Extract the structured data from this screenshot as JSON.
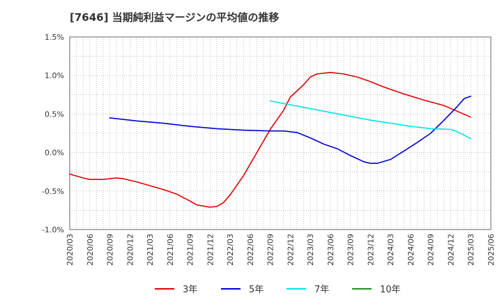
{
  "chart_data": {
    "type": "line",
    "title": "[7646]  当期純利益マージンの平均値の推移",
    "xlabel": "",
    "ylabel": "",
    "x": [
      "2020/03",
      "2020/06",
      "2020/09",
      "2020/12",
      "2021/03",
      "2021/06",
      "2021/09",
      "2021/12",
      "2022/03",
      "2022/06",
      "2022/09",
      "2022/12",
      "2023/03",
      "2023/06",
      "2023/09",
      "2023/12",
      "2024/03",
      "2024/06",
      "2024/09",
      "2024/12",
      "2025/03",
      "2025/06"
    ],
    "x_tick_labels": [
      "2020/03",
      "2020/06",
      "2020/09",
      "2020/12",
      "2021/03",
      "2021/06",
      "2021/09",
      "2021/12",
      "2022/03",
      "2022/06",
      "2022/09",
      "2022/12",
      "2023/03",
      "2023/06",
      "2023/09",
      "2023/12",
      "2024/03",
      "2024/06",
      "2024/09",
      "2024/12",
      "2025/03",
      "2025/06"
    ],
    "y_ticks": [
      -1.0,
      -0.5,
      0.0,
      0.5,
      1.0,
      1.5
    ],
    "y_tick_labels": [
      "-1.0%",
      "-0.5%",
      "0.0%",
      "0.5%",
      "1.0%",
      "1.5%"
    ],
    "ylim": [
      -1.0,
      1.5
    ],
    "grid": true,
    "legend_position": "bottom",
    "series": [
      {
        "name": "3年",
        "color": "#dd0000",
        "points": [
          [
            "2020/03",
            -0.28
          ],
          [
            "2020/05",
            -0.33
          ],
          [
            "2020/06",
            -0.35
          ],
          [
            "2020/08",
            -0.35
          ],
          [
            "2020/10",
            -0.33
          ],
          [
            "2020/11",
            -0.34
          ],
          [
            "2021/01",
            -0.38
          ],
          [
            "2021/03",
            -0.43
          ],
          [
            "2021/05",
            -0.48
          ],
          [
            "2021/07",
            -0.54
          ],
          [
            "2021/09",
            -0.63
          ],
          [
            "2021/10",
            -0.68
          ],
          [
            "2021/12",
            -0.71
          ],
          [
            "2022/01",
            -0.7
          ],
          [
            "2022/02",
            -0.65
          ],
          [
            "2022/03",
            -0.55
          ],
          [
            "2022/05",
            -0.3
          ],
          [
            "2022/07",
            0.0
          ],
          [
            "2022/09",
            0.3
          ],
          [
            "2022/11",
            0.55
          ],
          [
            "2022/12",
            0.72
          ],
          [
            "2023/02",
            0.88
          ],
          [
            "2023/03",
            0.98
          ],
          [
            "2023/04",
            1.02
          ],
          [
            "2023/06",
            1.04
          ],
          [
            "2023/08",
            1.02
          ],
          [
            "2023/10",
            0.98
          ],
          [
            "2023/12",
            0.92
          ],
          [
            "2024/02",
            0.85
          ],
          [
            "2024/05",
            0.76
          ],
          [
            "2024/08",
            0.68
          ],
          [
            "2024/11",
            0.61
          ],
          [
            "2025/03",
            0.46
          ]
        ]
      },
      {
        "name": "5年",
        "color": "#0000cc",
        "points": [
          [
            "2020/09",
            0.45
          ],
          [
            "2021/01",
            0.41
          ],
          [
            "2021/05",
            0.38
          ],
          [
            "2021/09",
            0.34
          ],
          [
            "2022/01",
            0.31
          ],
          [
            "2022/05",
            0.29
          ],
          [
            "2022/09",
            0.28
          ],
          [
            "2022/11",
            0.28
          ],
          [
            "2023/01",
            0.26
          ],
          [
            "2023/03",
            0.19
          ],
          [
            "2023/05",
            0.11
          ],
          [
            "2023/07",
            0.05
          ],
          [
            "2023/09",
            -0.04
          ],
          [
            "2023/11",
            -0.12
          ],
          [
            "2023/12",
            -0.14
          ],
          [
            "2024/01",
            -0.14
          ],
          [
            "2024/03",
            -0.09
          ],
          [
            "2024/05",
            0.02
          ],
          [
            "2024/07",
            0.13
          ],
          [
            "2024/09",
            0.25
          ],
          [
            "2024/11",
            0.42
          ],
          [
            "2025/01",
            0.6
          ],
          [
            "2025/02",
            0.7
          ],
          [
            "2025/03",
            0.73
          ]
        ]
      },
      {
        "name": "7年",
        "color": "#00e5e5",
        "points": [
          [
            "2022/09",
            0.67
          ],
          [
            "2022/12",
            0.62
          ],
          [
            "2023/03",
            0.57
          ],
          [
            "2023/06",
            0.52
          ],
          [
            "2023/09",
            0.47
          ],
          [
            "2023/12",
            0.42
          ],
          [
            "2024/03",
            0.38
          ],
          [
            "2024/06",
            0.34
          ],
          [
            "2024/09",
            0.31
          ],
          [
            "2024/12",
            0.3
          ],
          [
            "2025/01",
            0.27
          ],
          [
            "2025/03",
            0.18
          ]
        ]
      },
      {
        "name": "10年",
        "color": "#228b22",
        "points": []
      }
    ]
  }
}
